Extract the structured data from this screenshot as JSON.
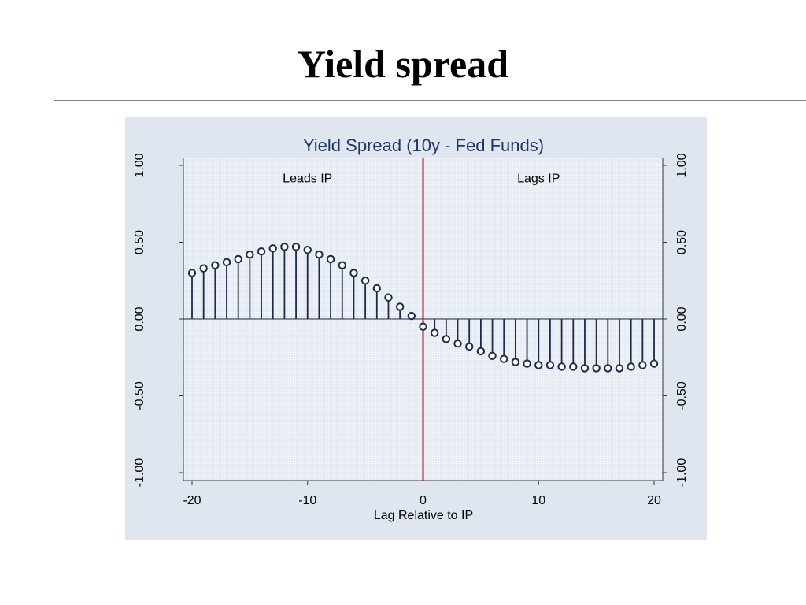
{
  "slide": {
    "title": "Yield spread"
  },
  "colors": {
    "panel_background": "#dfe6ef",
    "plot_background": "#f4f7fb",
    "grid": "#b9c6d6",
    "series": "#1d2a4a",
    "marker_fill": "#ffffff",
    "zero_line": "#c8102e",
    "title_text": "#1f3768",
    "text": "#000000"
  },
  "chart_data": {
    "type": "scatter",
    "style": "stem-with-circle-markers",
    "title": "Yield Spread (10y - Fed Funds)",
    "xlabel": "Lag Relative to IP",
    "ylabel": "",
    "xlim": [
      -20,
      20
    ],
    "ylim": [
      -1.0,
      1.0
    ],
    "x_ticks": [
      -20,
      -10,
      0,
      10,
      20
    ],
    "x_tick_labels": [
      "-20",
      "-10",
      "0",
      "10",
      "20"
    ],
    "y_ticks": [
      1.0,
      0.5,
      0.0,
      -0.5,
      -1.0
    ],
    "y_tick_labels": [
      "1.00",
      "0.50",
      "0.00",
      "-0.50",
      "-1.00"
    ],
    "y_axes": "left-and-right",
    "grid": true,
    "legend": false,
    "vertical_reference_line": 0,
    "annotations": [
      {
        "text": "Leads IP",
        "x": -10,
        "y": 0.89
      },
      {
        "text": "Lags IP",
        "x": 10,
        "y": 0.89
      }
    ],
    "x": [
      -20,
      -19,
      -18,
      -17,
      -16,
      -15,
      -14,
      -13,
      -12,
      -11,
      -10,
      -9,
      -8,
      -7,
      -6,
      -5,
      -4,
      -3,
      -2,
      -1,
      0,
      1,
      2,
      3,
      4,
      5,
      6,
      7,
      8,
      9,
      10,
      11,
      12,
      13,
      14,
      15,
      16,
      17,
      18,
      19,
      20
    ],
    "values": [
      0.3,
      0.33,
      0.35,
      0.37,
      0.39,
      0.42,
      0.44,
      0.46,
      0.47,
      0.47,
      0.45,
      0.42,
      0.39,
      0.35,
      0.3,
      0.25,
      0.2,
      0.14,
      0.08,
      0.02,
      -0.05,
      -0.09,
      -0.13,
      -0.16,
      -0.18,
      -0.21,
      -0.24,
      -0.26,
      -0.28,
      -0.29,
      -0.3,
      -0.3,
      -0.31,
      -0.31,
      -0.32,
      -0.32,
      -0.32,
      -0.32,
      -0.31,
      -0.3,
      -0.29
    ]
  }
}
